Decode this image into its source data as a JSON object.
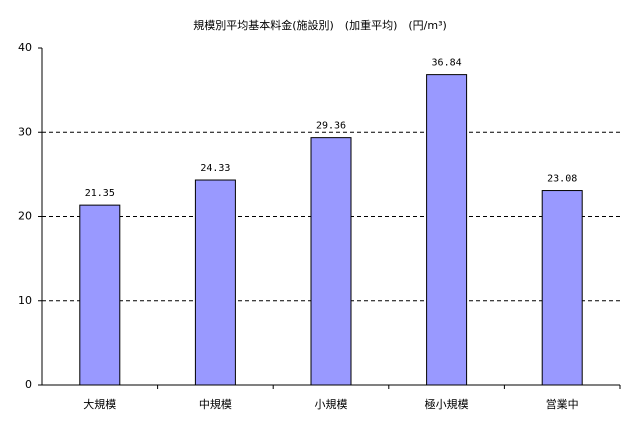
{
  "chart_data": {
    "type": "bar",
    "title": "規模別平均基本料金(施設別)　(加重平均)　(円/m³)",
    "categories": [
      "大規模",
      "中規模",
      "小規模",
      "極小規模",
      "営業中"
    ],
    "values": [
      21.35,
      24.33,
      29.36,
      36.84,
      23.08
    ],
    "color": "#9999ff",
    "ylim": [
      0,
      40
    ],
    "yticks": [
      0,
      10,
      20,
      30,
      40
    ],
    "grid": true
  }
}
